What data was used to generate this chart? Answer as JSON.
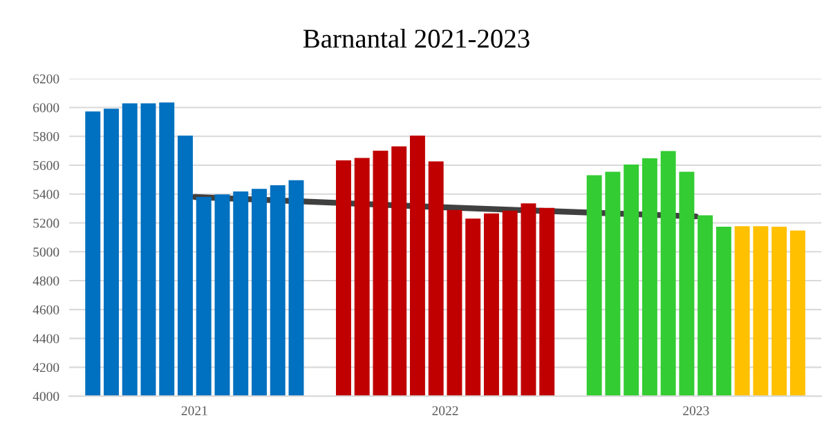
{
  "chart_data": {
    "type": "bar",
    "title": "Barnantal 2021-2023",
    "categories": [
      "2021",
      "2022",
      "2023"
    ],
    "series": [
      {
        "values": [
          5973,
          5634,
          5531
        ],
        "colors": [
          "#0070c0",
          "#c00000",
          "#33cc33"
        ]
      },
      {
        "values": [
          5992,
          5651,
          5555
        ],
        "colors": [
          "#0070c0",
          "#c00000",
          "#33cc33"
        ]
      },
      {
        "values": [
          6029,
          5701,
          5605
        ],
        "colors": [
          "#0070c0",
          "#c00000",
          "#33cc33"
        ]
      },
      {
        "values": [
          6029,
          5731,
          5648
        ],
        "colors": [
          "#0070c0",
          "#c00000",
          "#33cc33"
        ]
      },
      {
        "values": [
          6035,
          5805,
          5698
        ],
        "colors": [
          "#0070c0",
          "#c00000",
          "#33cc33"
        ]
      },
      {
        "values": [
          5805,
          5627,
          5555
        ],
        "colors": [
          "#0070c0",
          "#c00000",
          "#33cc33"
        ]
      },
      {
        "values": [
          5380,
          5290,
          5253
        ],
        "colors": [
          "#0070c0",
          "#c00000",
          "#33cc33"
        ]
      },
      {
        "values": [
          5398,
          5230,
          5174
        ],
        "colors": [
          "#0070c0",
          "#c00000",
          "#33cc33"
        ]
      },
      {
        "values": [
          5418,
          5266,
          5178
        ],
        "colors": [
          "#0070c0",
          "#c00000",
          "#ffc000"
        ]
      },
      {
        "values": [
          5436,
          5285,
          5178
        ],
        "colors": [
          "#0070c0",
          "#c00000",
          "#ffc000"
        ]
      },
      {
        "values": [
          5461,
          5335,
          5174
        ],
        "colors": [
          "#0070c0",
          "#c00000",
          "#ffc000"
        ]
      },
      {
        "values": [
          5496,
          5305,
          5148
        ],
        "colors": [
          "#0070c0",
          "#c00000",
          "#ffc000"
        ]
      },
      {
        "type": "line",
        "values": [
          5380,
          5308,
          5245
        ],
        "color": "#404040"
      }
    ],
    "ylim": [
      4000,
      6200
    ],
    "yticks": [
      4000,
      4200,
      4400,
      4600,
      4800,
      5000,
      5200,
      5400,
      5600,
      5800,
      6000,
      6200
    ],
    "grid": "y"
  }
}
